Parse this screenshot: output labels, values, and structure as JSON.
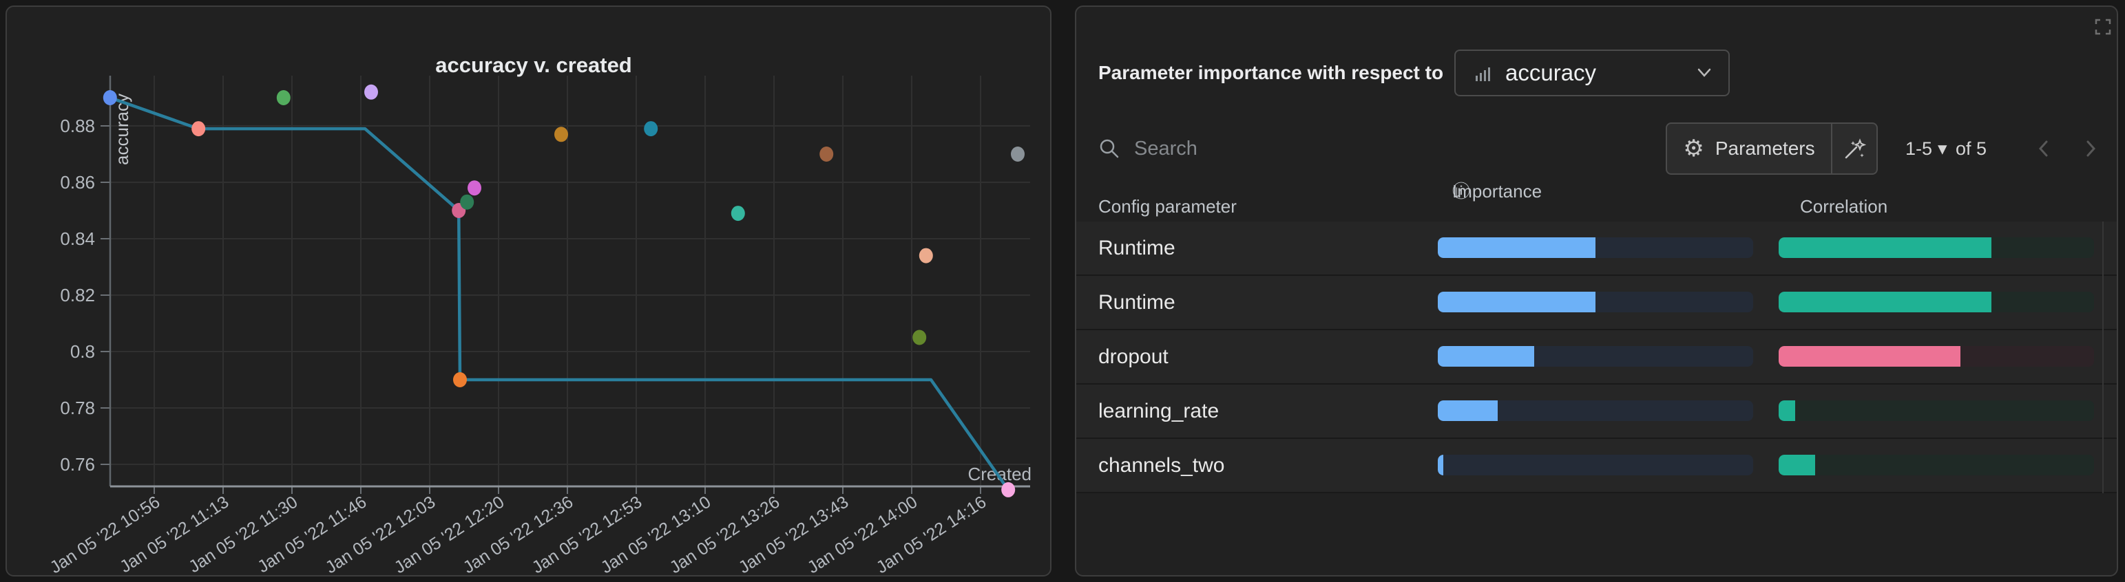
{
  "chart_data": {
    "type": "scatter",
    "title": "accuracy v. created",
    "xlabel": "Created",
    "ylabel": "accuracy",
    "x_tick_labels": [
      "Jan 05 '22 10:56",
      "Jan 05 '22 11:13",
      "Jan 05 '22 11:30",
      "Jan 05 '22 11:46",
      "Jan 05 '22 12:03",
      "Jan 05 '22 12:20",
      "Jan 05 '22 12:36",
      "Jan 05 '22 12:53",
      "Jan 05 '22 13:10",
      "Jan 05 '22 13:26",
      "Jan 05 '22 13:43",
      "Jan 05 '22 14:00",
      "Jan 05 '22 14:16"
    ],
    "y_tick_labels": [
      "0.88",
      "0.86",
      "0.84",
      "0.82",
      "0.8",
      "0.78",
      "0.76"
    ],
    "y_ticks": [
      0.88,
      0.86,
      0.84,
      0.82,
      0.8,
      0.78,
      0.76
    ],
    "ylim": [
      0.752,
      0.898
    ],
    "grid": true,
    "points": [
      {
        "x_minutes": -10.7,
        "value": 0.89,
        "color": "#5f8ef0",
        "name": "blue"
      },
      {
        "x_minutes": 10.7,
        "value": 0.879,
        "color": "#f98c82",
        "name": "salmon"
      },
      {
        "x_minutes": 31.3,
        "value": 0.89,
        "color": "#53ad5e",
        "name": "green"
      },
      {
        "x_minutes": 52.5,
        "value": 0.892,
        "color": "#c7a4f4",
        "name": "lavender"
      },
      {
        "x_minutes": 73.7,
        "value": 0.85,
        "color": "#d6638f",
        "name": "rose"
      },
      {
        "x_minutes": 75.7,
        "value": 0.853,
        "color": "#2d7c55",
        "name": "dark-green"
      },
      {
        "x_minutes": 77.5,
        "value": 0.858,
        "color": "#d465d4",
        "name": "orchid"
      },
      {
        "x_minutes": 74.0,
        "value": 0.79,
        "color": "#ee7d2f",
        "name": "orange"
      },
      {
        "x_minutes": 98.5,
        "value": 0.877,
        "color": "#bd8125",
        "name": "goldenrod"
      },
      {
        "x_minutes": 120.2,
        "value": 0.879,
        "color": "#2088a5",
        "name": "teal-blue"
      },
      {
        "x_minutes": 141.3,
        "value": 0.849,
        "color": "#35b79f",
        "name": "teal-green"
      },
      {
        "x_minutes": 162.7,
        "value": 0.87,
        "color": "#9e6240",
        "name": "brown"
      },
      {
        "x_minutes": 186.8,
        "value": 0.834,
        "color": "#ecab8d",
        "name": "peach"
      },
      {
        "x_minutes": 185.2,
        "value": 0.805,
        "color": "#64882c",
        "name": "olive"
      },
      {
        "x_minutes": 209.0,
        "value": 0.87,
        "color": "#8a9298",
        "name": "gray"
      },
      {
        "x_minutes": 206.7,
        "value": 0.751,
        "color": "#f8a9e2",
        "name": "pink"
      }
    ],
    "line": {
      "color": "#2a7f9d",
      "vertices": [
        [
          -10.7,
          0.89
        ],
        [
          10.7,
          0.879
        ],
        [
          51,
          0.879
        ],
        [
          73.7,
          0.85
        ],
        [
          74,
          0.79
        ],
        [
          188,
          0.79
        ],
        [
          206.7,
          0.751
        ]
      ]
    }
  },
  "right_panel": {
    "header": {
      "label": "Parameter importance with respect to",
      "metric": "accuracy"
    },
    "toolbar": {
      "search_placeholder": "Search",
      "parameters_label": "Parameters",
      "pagination": {
        "range": "1-5",
        "caret": "▾",
        "of_label": "of 5"
      }
    },
    "table": {
      "headers": {
        "parameter": "Config parameter",
        "importance": "Importance",
        "correlation": "Correlation"
      },
      "importance_color": "#6db1f7",
      "importance_track": "#242b37",
      "rows": [
        {
          "name": "Runtime",
          "importance": 0.5,
          "correlation": 0.675,
          "corr_color": "#1fb294",
          "corr_track": "#1f2a26"
        },
        {
          "name": "Runtime",
          "importance": 0.5,
          "correlation": 0.675,
          "corr_color": "#1fb294",
          "corr_track": "#1f2a26"
        },
        {
          "name": "dropout",
          "importance": 0.305,
          "correlation": 0.576,
          "corr_color": "#ed7295",
          "corr_track": "#2d2327"
        },
        {
          "name": "learning_rate",
          "importance": 0.19,
          "correlation": 0.052,
          "corr_color": "#1fb294",
          "corr_track": "#1f2a26"
        },
        {
          "name": "channels_two",
          "importance": 0.018,
          "correlation": 0.116,
          "corr_color": "#1fb294",
          "corr_track": "#1f2a26"
        }
      ]
    },
    "icons": {
      "info": "ⓘ",
      "sort_desc": "↓",
      "gear": "⚙",
      "caret": "▾"
    }
  },
  "colors": {
    "page_bg": "#181818",
    "card_bg": "#212121",
    "card_border": "#3d3d3d",
    "row_bg": "#262626",
    "grid": "#303030",
    "axis": "#8d9399",
    "tick_text": "#b4b9bf"
  }
}
